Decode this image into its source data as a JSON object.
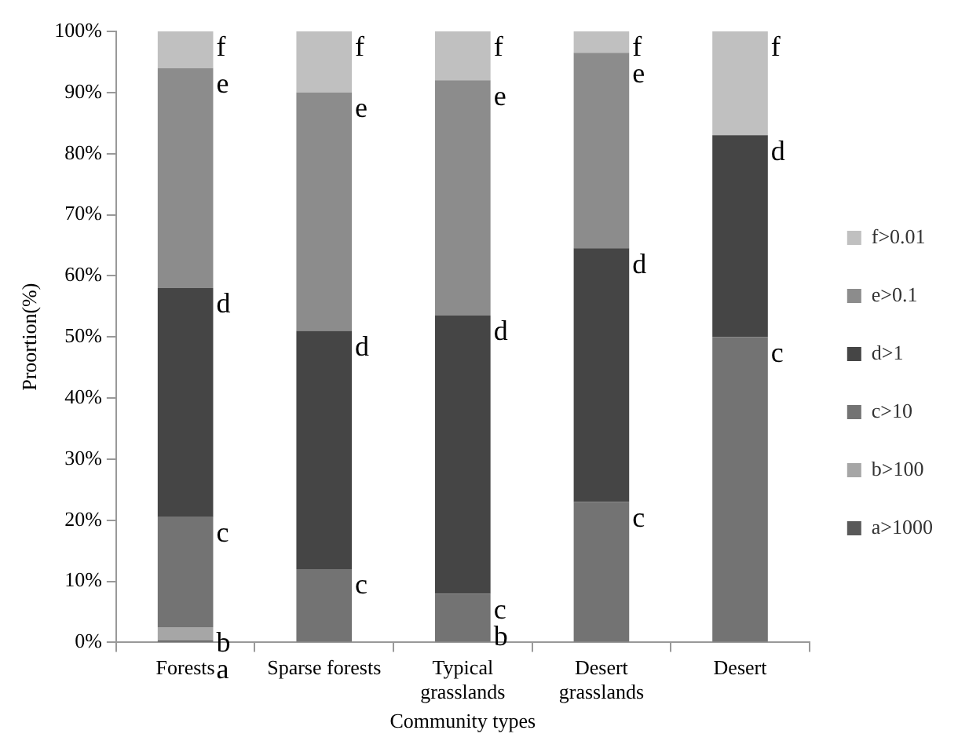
{
  "chart_data": {
    "type": "bar",
    "stacked": true,
    "xlabel": "Community types",
    "ylabel": "Proortion(%)",
    "categories": [
      "Forests",
      "Sparse forests",
      "Typical grasslands",
      "Desert grasslands",
      "Desert"
    ],
    "series": [
      {
        "name": "a>1000",
        "color": "#595959",
        "values": [
          0.3,
          0,
          0,
          0,
          0
        ]
      },
      {
        "name": "b>100",
        "color": "#a6a6a6",
        "values": [
          2.2,
          0,
          0,
          0,
          0
        ]
      },
      {
        "name": "c>10",
        "color": "#737373",
        "values": [
          18,
          12,
          8,
          23,
          50
        ]
      },
      {
        "name": "d>1",
        "color": "#454545",
        "values": [
          37.5,
          39,
          45.5,
          41.5,
          33
        ]
      },
      {
        "name": "e>0.1",
        "color": "#8c8c8c",
        "values": [
          36,
          39,
          38.5,
          32,
          0
        ]
      },
      {
        "name": "f>0.01",
        "color": "#c0c0c0",
        "values": [
          6,
          10,
          8,
          3.5,
          17
        ]
      }
    ],
    "ylim": [
      0,
      100
    ],
    "yticks": [
      {
        "value": 0,
        "label": "0%"
      },
      {
        "value": 10,
        "label": "10%"
      },
      {
        "value": 20,
        "label": "20%"
      },
      {
        "value": 30,
        "label": "30%"
      },
      {
        "value": 40,
        "label": "40%"
      },
      {
        "value": 50,
        "label": "50%"
      },
      {
        "value": 60,
        "label": "60%"
      },
      {
        "value": 70,
        "label": "70%"
      },
      {
        "value": 80,
        "label": "80%"
      },
      {
        "value": 90,
        "label": "90%"
      },
      {
        "value": 100,
        "label": "100%"
      }
    ],
    "grid": false,
    "legend": "right",
    "annotations": [
      {
        "text": "f",
        "x": "Forests",
        "y": 100
      },
      {
        "text": "e",
        "x": "Forests",
        "y": 94
      },
      {
        "text": "d",
        "x": "Forests",
        "y": 58
      },
      {
        "text": "c",
        "x": "Forests",
        "y": 20.5
      },
      {
        "text": "b",
        "x": "Forests",
        "y": 2.5
      },
      {
        "text": "a",
        "x": "Forests",
        "y": 0.3
      },
      {
        "text": "f",
        "x": "Sparse forests",
        "y": 100
      },
      {
        "text": "e",
        "x": "Sparse forests",
        "y": 90
      },
      {
        "text": "d",
        "x": "Sparse forests",
        "y": 51
      },
      {
        "text": "c",
        "x": "Sparse forests",
        "y": 12
      },
      {
        "text": "f",
        "x": "Typical grasslands",
        "y": 100
      },
      {
        "text": "e",
        "x": "Typical grasslands",
        "y": 92
      },
      {
        "text": "d",
        "x": "Typical grasslands",
        "y": 53.5
      },
      {
        "text": "c",
        "x": "Typical grasslands",
        "y": 8
      },
      {
        "text": "b",
        "x": "Typical grasslands",
        "y": 8
      },
      {
        "text": "f",
        "x": "Desert grasslands",
        "y": 100
      },
      {
        "text": "e",
        "x": "Desert grasslands",
        "y": 96.5
      },
      {
        "text": "d",
        "x": "Desert grasslands",
        "y": 64.5
      },
      {
        "text": "c",
        "x": "Desert grasslands",
        "y": 23
      },
      {
        "text": "f",
        "x": "Desert",
        "y": 100
      },
      {
        "text": "d",
        "x": "Desert",
        "y": 83
      },
      {
        "text": "c",
        "x": "Desert",
        "y": 50
      }
    ]
  }
}
